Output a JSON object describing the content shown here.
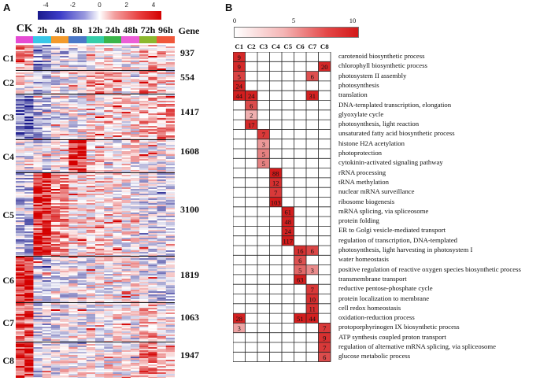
{
  "panel_a": {
    "letter": "A",
    "colorbar_ticks": [
      "-4",
      "-2",
      "0",
      "2",
      "4"
    ],
    "time_points": [
      {
        "label": "CK",
        "color": "#e54bd3"
      },
      {
        "label": "2h",
        "color": "#38c7e8"
      },
      {
        "label": "4h",
        "color": "#f39a2b"
      },
      {
        "label": "8h",
        "color": "#4b78c8"
      },
      {
        "label": "12h",
        "color": "#35cda9"
      },
      {
        "label": "24h",
        "color": "#3ab54a"
      },
      {
        "label": "48h",
        "color": "#ec5ed7"
      },
      {
        "label": "72h",
        "color": "#8cb82e"
      },
      {
        "label": "96h",
        "color": "#f0573a"
      }
    ],
    "gene_header": "Gene",
    "clusters": [
      {
        "label": "C1",
        "count": "937"
      },
      {
        "label": "C2",
        "count": "554"
      },
      {
        "label": "C3",
        "count": "1417"
      },
      {
        "label": "C4",
        "count": "1608"
      },
      {
        "label": "C5",
        "count": "3100"
      },
      {
        "label": "C6",
        "count": "1819"
      },
      {
        "label": "C7",
        "count": "1063"
      },
      {
        "label": "C8",
        "count": "1947"
      }
    ]
  },
  "panel_b": {
    "letter": "B",
    "colorbar_ticks": [
      "0",
      "5",
      "10"
    ],
    "columns": [
      "C1",
      "C2",
      "C3",
      "C4",
      "C5",
      "C6",
      "C7",
      "C8"
    ],
    "terms": [
      "carotenoid biosynthetic process",
      "chlorophyll biosynthetic process",
      "photosystem II assembly",
      "photosynthesis",
      "translation",
      "DNA-templated transcription, elongation",
      "glyoxylate cycle",
      "photosynthesis, light reaction",
      "unsaturated fatty acid biosynthetic process",
      "histone H2A acetylation",
      "photoprotection",
      "cytokinin-activated signaling pathway",
      "rRNA processing",
      "tRNA methylation",
      "nuclear mRNA surveillance",
      "ribosome biogenesis",
      "mRNA splicing, via spliceosome",
      "protein folding",
      "ER to Golgi vesicle-mediated transport",
      "regulation of transcription, DNA-templated",
      "photosynthesis, light harvesting in photosystem I",
      "water homeostasis",
      "positive regulation of reactive oxygen species biosynthetic process",
      "transmembrane transport",
      "reductive pentose-phosphate cycle",
      "protein localization to membrane",
      "cell redox homeostasis",
      "oxidation-reduction process",
      "protoporphyrinogen IX biosynthetic process",
      "ATP synthesis coupled proton transport",
      "regulation of alternative mRNA splicing, via spliceosome",
      "glucose metabolic process"
    ],
    "cells": [
      [
        0,
        0,
        "9",
        9.3
      ],
      [
        1,
        0,
        "9",
        9.3
      ],
      [
        2,
        0,
        "5",
        8.2
      ],
      [
        3,
        0,
        "24",
        9.6
      ],
      [
        4,
        0,
        "44",
        9.8
      ],
      [
        4,
        1,
        "24",
        9.6
      ],
      [
        5,
        1,
        "6",
        7.8
      ],
      [
        6,
        1,
        "2",
        3.5
      ],
      [
        7,
        1,
        "17",
        9.3
      ],
      [
        8,
        2,
        "7",
        8.6
      ],
      [
        9,
        2,
        "3",
        4.5
      ],
      [
        10,
        2,
        "5",
        5.5
      ],
      [
        11,
        2,
        "5",
        5.5
      ],
      [
        12,
        3,
        "88",
        9.9
      ],
      [
        13,
        3,
        "12",
        9.0
      ],
      [
        14,
        3,
        "7",
        8.6
      ],
      [
        15,
        3,
        "103",
        9.9
      ],
      [
        16,
        4,
        "61",
        9.8
      ],
      [
        17,
        4,
        "48",
        9.7
      ],
      [
        18,
        4,
        "24",
        9.6
      ],
      [
        19,
        4,
        "117",
        9.9
      ],
      [
        20,
        5,
        "16",
        9.0
      ],
      [
        20,
        6,
        "6",
        8.0
      ],
      [
        21,
        5,
        "6",
        7.6
      ],
      [
        22,
        5,
        "5",
        6.6
      ],
      [
        22,
        6,
        "3",
        5.0
      ],
      [
        23,
        5,
        "63",
        9.8
      ],
      [
        24,
        6,
        "7",
        8.6
      ],
      [
        25,
        6,
        "10",
        9.0
      ],
      [
        26,
        6,
        "11",
        9.0
      ],
      [
        27,
        0,
        "28",
        9.6
      ],
      [
        27,
        5,
        "51",
        9.8
      ],
      [
        27,
        6,
        "44",
        9.7
      ],
      [
        4,
        6,
        "31",
        9.6
      ],
      [
        2,
        6,
        "6",
        7.6
      ],
      [
        1,
        7,
        "20",
        9.4
      ],
      [
        28,
        0,
        "3",
        4.0
      ],
      [
        28,
        7,
        "7",
        8.6
      ],
      [
        29,
        7,
        "9",
        9.0
      ],
      [
        30,
        7,
        "7",
        8.6
      ],
      [
        31,
        7,
        "6",
        7.8
      ]
    ]
  }
}
